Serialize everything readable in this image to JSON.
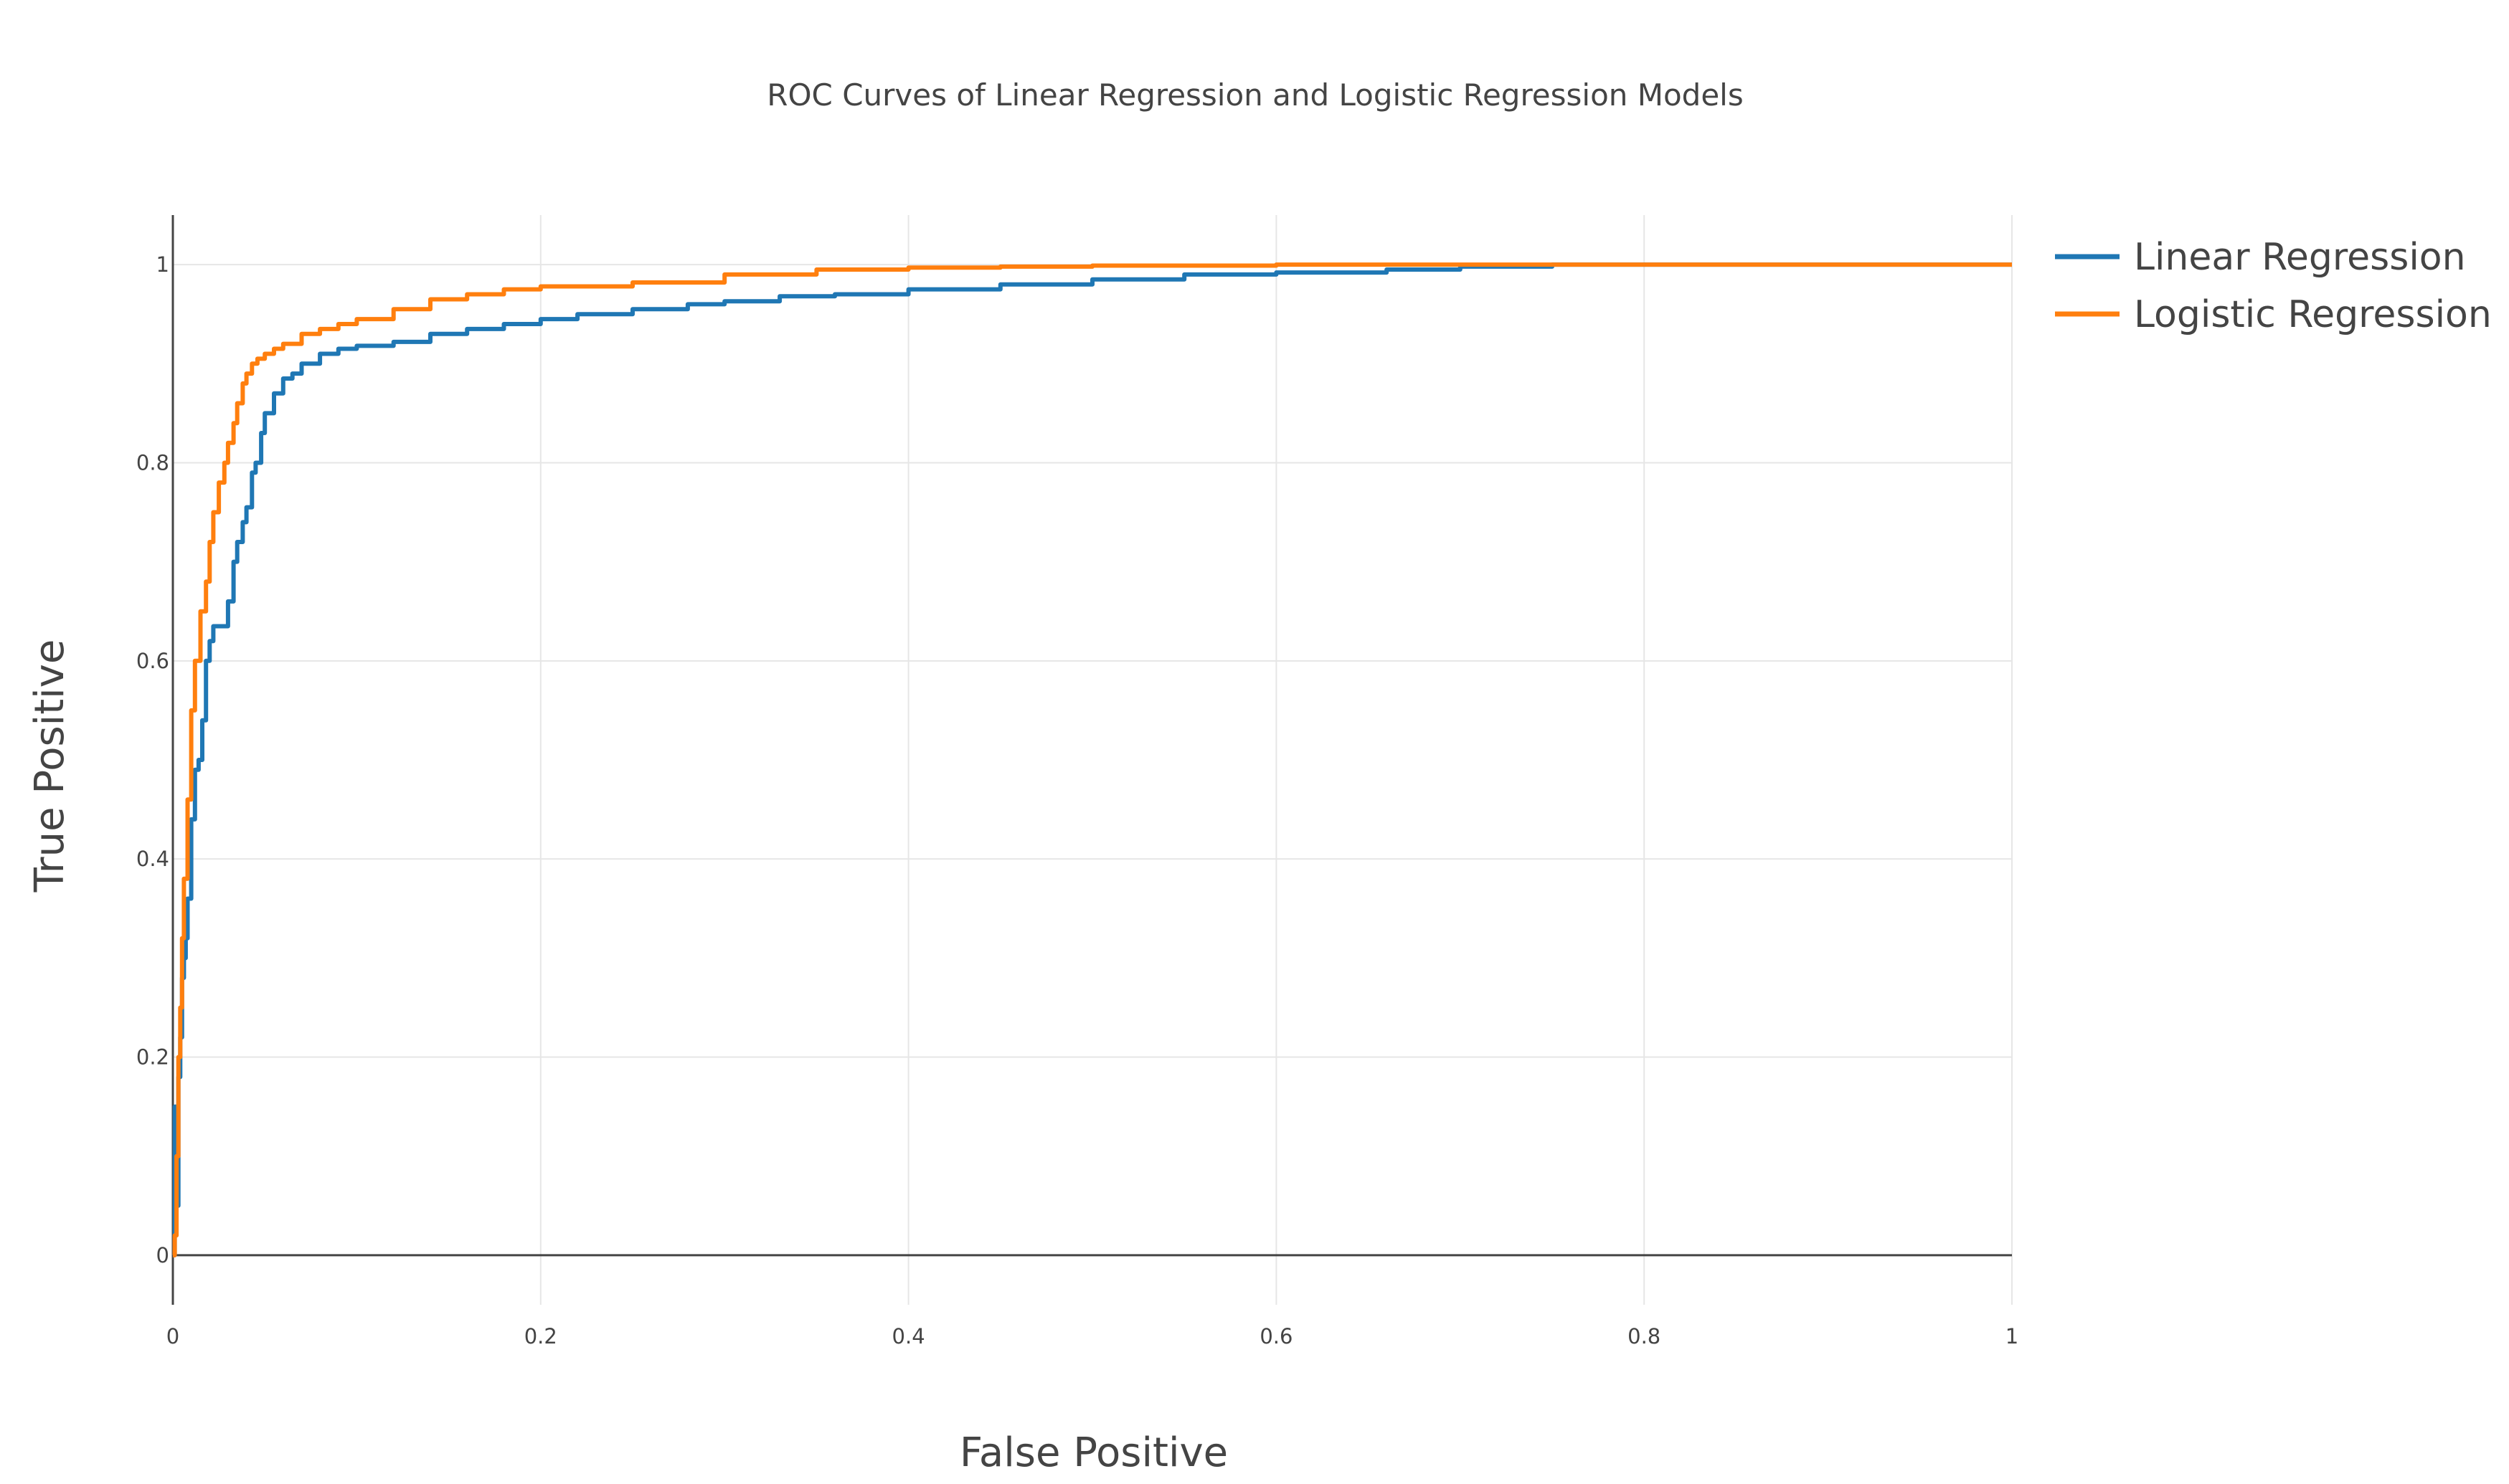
{
  "chart_data": {
    "type": "line",
    "title": "ROC Curves of Linear Regression and Logistic Regression Models",
    "xlabel": "False Positive",
    "ylabel": "True Positive",
    "xlim": [
      0,
      1
    ],
    "ylim": [
      -0.05,
      1.05
    ],
    "xticks": [
      0,
      0.2,
      0.4,
      0.6,
      0.8,
      1
    ],
    "xtick_labels": [
      "0",
      "0.2",
      "0.4",
      "0.6",
      "0.8",
      "1"
    ],
    "yticks": [
      0,
      0.2,
      0.4,
      0.6,
      0.8,
      1
    ],
    "ytick_labels": [
      "0",
      "0.2",
      "0.4",
      "0.6",
      "0.8",
      "1"
    ],
    "grid": true,
    "legend": "top-right outside",
    "series": [
      {
        "name": "Linear Regression",
        "color": "#1f77b4",
        "x": [
          0,
          0.001,
          0.002,
          0.003,
          0.004,
          0.005,
          0.006,
          0.007,
          0.008,
          0.01,
          0.012,
          0.014,
          0.016,
          0.018,
          0.02,
          0.022,
          0.025,
          0.03,
          0.033,
          0.035,
          0.038,
          0.04,
          0.043,
          0.045,
          0.048,
          0.05,
          0.055,
          0.06,
          0.065,
          0.07,
          0.08,
          0.09,
          0.1,
          0.12,
          0.14,
          0.16,
          0.18,
          0.2,
          0.22,
          0.25,
          0.28,
          0.3,
          0.33,
          0.36,
          0.4,
          0.45,
          0.5,
          0.55,
          0.6,
          0.66,
          0.7,
          0.75,
          1
        ],
        "y": [
          0,
          0.15,
          0.05,
          0.18,
          0.22,
          0.28,
          0.3,
          0.32,
          0.36,
          0.44,
          0.49,
          0.5,
          0.54,
          0.6,
          0.62,
          0.635,
          0.635,
          0.66,
          0.7,
          0.72,
          0.74,
          0.755,
          0.79,
          0.8,
          0.83,
          0.85,
          0.87,
          0.885,
          0.89,
          0.9,
          0.91,
          0.915,
          0.918,
          0.922,
          0.93,
          0.935,
          0.94,
          0.945,
          0.95,
          0.955,
          0.96,
          0.963,
          0.968,
          0.97,
          0.975,
          0.98,
          0.985,
          0.99,
          0.992,
          0.995,
          0.998,
          1,
          1
        ]
      },
      {
        "name": "Logistic Regression",
        "color": "#ff7f0e",
        "x": [
          0,
          0.001,
          0.002,
          0.003,
          0.004,
          0.005,
          0.006,
          0.008,
          0.01,
          0.012,
          0.015,
          0.018,
          0.02,
          0.022,
          0.025,
          0.028,
          0.03,
          0.033,
          0.035,
          0.038,
          0.04,
          0.043,
          0.046,
          0.05,
          0.055,
          0.06,
          0.07,
          0.08,
          0.09,
          0.1,
          0.12,
          0.14,
          0.16,
          0.18,
          0.2,
          0.25,
          0.3,
          0.35,
          0.4,
          0.45,
          0.5,
          0.6,
          0.7,
          1
        ],
        "y": [
          0,
          0.02,
          0.1,
          0.2,
          0.25,
          0.32,
          0.38,
          0.46,
          0.55,
          0.6,
          0.65,
          0.68,
          0.72,
          0.75,
          0.78,
          0.8,
          0.82,
          0.84,
          0.86,
          0.88,
          0.89,
          0.9,
          0.905,
          0.91,
          0.915,
          0.92,
          0.93,
          0.935,
          0.94,
          0.945,
          0.955,
          0.965,
          0.97,
          0.975,
          0.978,
          0.982,
          0.99,
          0.995,
          0.997,
          0.998,
          0.999,
          1,
          1,
          1
        ]
      }
    ]
  }
}
